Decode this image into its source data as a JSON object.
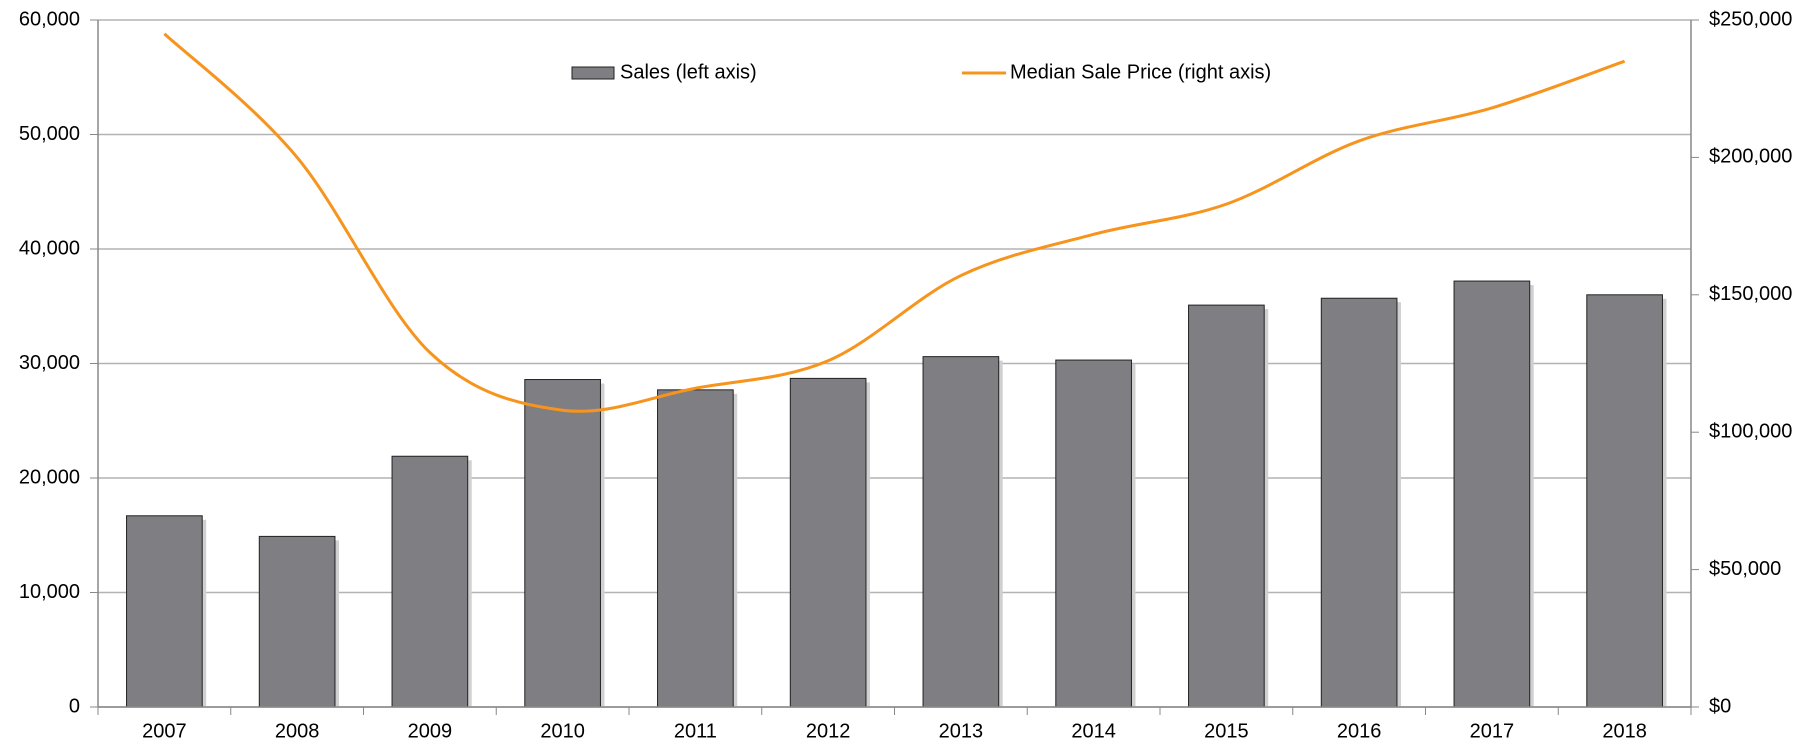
{
  "chart_data": {
    "type": "bar_line",
    "categories": [
      "2007",
      "2008",
      "2009",
      "2010",
      "2011",
      "2012",
      "2013",
      "2014",
      "2015",
      "2016",
      "2017",
      "2018"
    ],
    "series": [
      {
        "name": "Sales (left axis)",
        "type": "bar",
        "color": "#7f7e82",
        "values": [
          16700,
          14900,
          21900,
          28600,
          27700,
          28700,
          30600,
          30300,
          35100,
          35700,
          37200,
          36000
        ]
      },
      {
        "name": "Median Sale Price (right axis)",
        "type": "line",
        "axis": "y2",
        "color": "#f7941d",
        "values": [
          245000,
          200000,
          129000,
          108000,
          116000,
          126000,
          157000,
          172000,
          183000,
          206000,
          218000,
          235000
        ]
      }
    ],
    "ylim": [
      0,
      60000
    ],
    "yticks": [
      0,
      {
        "value": 10000,
        "label": "10,000"
      },
      {
        "value": 20000,
        "label": "20,000"
      },
      {
        "value": 30000,
        "label": "30,000"
      },
      {
        "value": 40000,
        "label": "40,000"
      },
      {
        "value": 50000,
        "label": "50,000"
      },
      {
        "value": 60000,
        "label": "60,000"
      }
    ],
    "y2lim": [
      0,
      250000
    ],
    "y2ticks": [
      {
        "value": 0,
        "label": "$0"
      },
      {
        "value": 50000,
        "label": "$50,000"
      },
      {
        "value": 100000,
        "label": "$100,000"
      },
      {
        "value": 150000,
        "label": "$150,000"
      },
      {
        "value": 200000,
        "label": "$200,000"
      },
      {
        "value": 250000,
        "label": "$250,000"
      }
    ],
    "grid": true,
    "legend": "top"
  }
}
